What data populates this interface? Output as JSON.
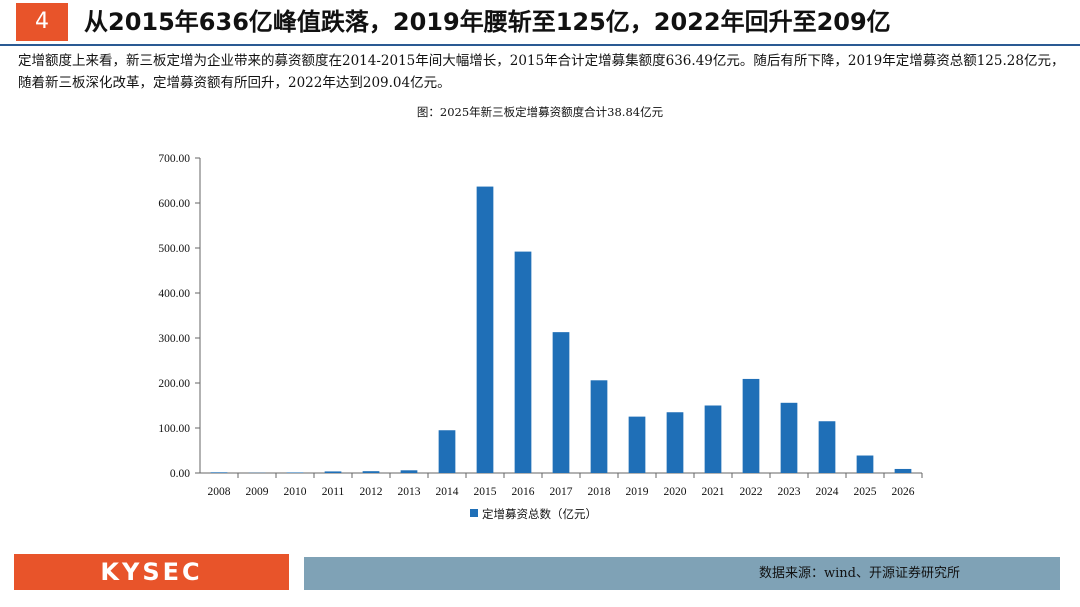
{
  "header": {
    "number": "4",
    "title": "从2015年636亿峰值跌落，2019年腰斩至125亿，2022年回升至209亿"
  },
  "intro_text": "定增额度上来看，新三板定增为企业带来的募资额度在2014-2015年间大幅增长，2015年合计定增募集额度636.49亿元。随后有所下降，2019年定增募资总额125.28亿元，随着新三板深化改革，定增募资额有所回升，2022年达到209.04亿元。",
  "figure_title": "图：2025年新三板定增募资额度合计38.84亿元",
  "chart_data": {
    "type": "bar",
    "categories": [
      "2008",
      "2009",
      "2010",
      "2011",
      "2012",
      "2013",
      "2014",
      "2015",
      "2016",
      "2017",
      "2018",
      "2019",
      "2020",
      "2021",
      "2022",
      "2023",
      "2024",
      "2025",
      "2026"
    ],
    "series": [
      {
        "name": "定增募资总数（亿元）",
        "values": [
          1.5,
          0.5,
          1.2,
          3.5,
          4.0,
          6.0,
          95.0,
          636.49,
          492.0,
          313.0,
          206.0,
          125.28,
          135.0,
          150.0,
          209.04,
          156.0,
          115.0,
          38.84,
          9.0
        ]
      }
    ],
    "ylim": [
      0,
      700
    ],
    "yticks": [
      "0.00",
      "100.00",
      "200.00",
      "300.00",
      "400.00",
      "500.00",
      "600.00",
      "700.00"
    ],
    "ytick_values": [
      0,
      100,
      200,
      300,
      400,
      500,
      600,
      700
    ],
    "bar_color": "#1f6fb7",
    "legend_position": "bottom-center",
    "grid": false
  },
  "footer": {
    "logo": "KYSEC",
    "source": "数据来源：wind、开源证券研究所"
  },
  "colors": {
    "accent": "#e8542a",
    "header_rule": "#2a5a93",
    "footer_bar": "#7fa2b6"
  }
}
